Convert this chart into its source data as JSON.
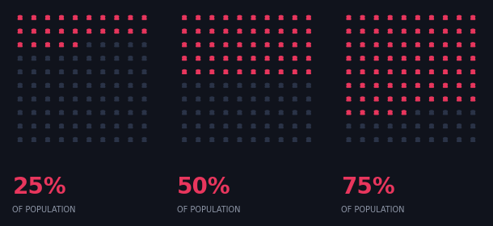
{
  "background_color": "#10131c",
  "icon_color_active": "#e8365d",
  "icon_color_inactive": "#2a3347",
  "label_color_pct": "#e8365d",
  "label_color_sub": "#9099aa",
  "panels": [
    {
      "pct": 25,
      "label": "25%",
      "sub": "OF POPULATION"
    },
    {
      "pct": 50,
      "label": "50%",
      "sub": "OF POPULATION"
    },
    {
      "pct": 75,
      "label": "75%",
      "sub": "OF POPULATION"
    }
  ],
  "rows": 10,
  "cols": 10,
  "total_icons": 100,
  "fig_width": 6.1,
  "fig_height": 2.8,
  "dpi": 100
}
